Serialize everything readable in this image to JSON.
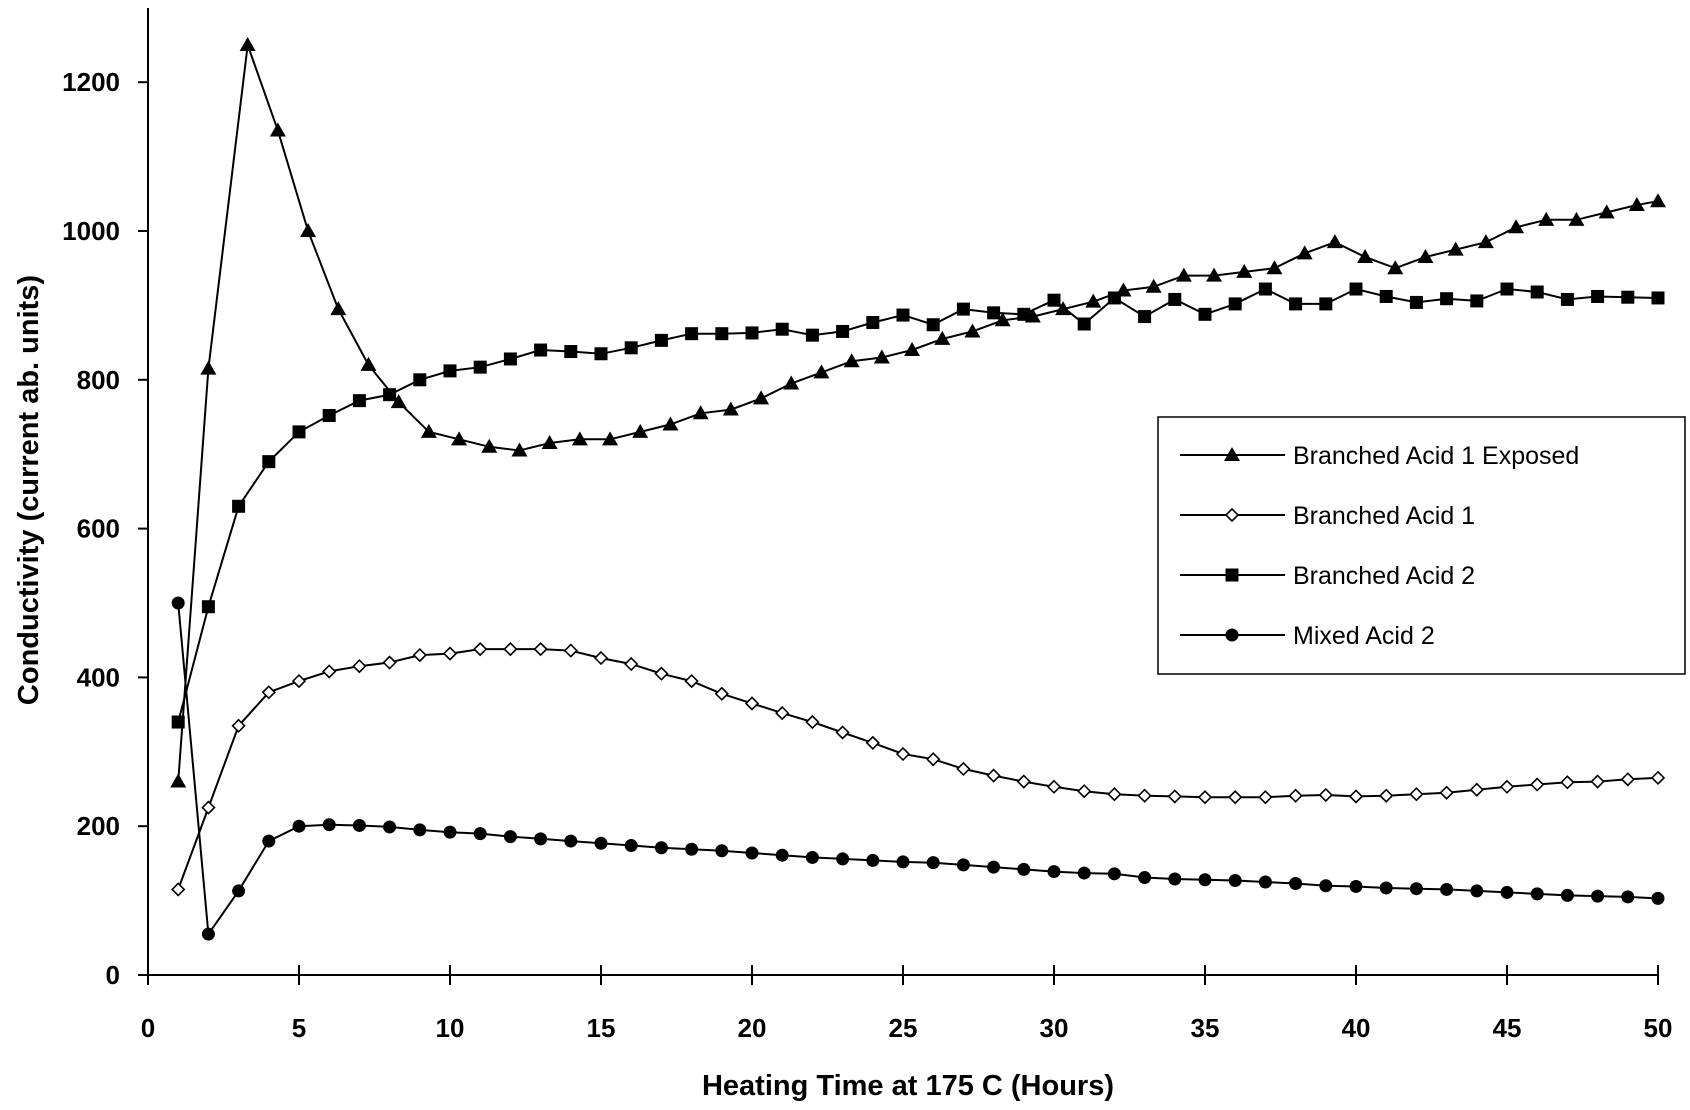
{
  "chart_data": {
    "type": "line",
    "title": "",
    "xlabel": "Heating Time at 175 C (Hours)",
    "ylabel": "Conductivity (current ab. units)",
    "xlim": [
      0,
      50
    ],
    "ylim": [
      0,
      1250
    ],
    "xticks": [
      "0",
      "5",
      "10",
      "15",
      "20",
      "25",
      "30",
      "35",
      "40",
      "45",
      "50"
    ],
    "yticks": [
      "0",
      "200",
      "400",
      "600",
      "800",
      "1000",
      "1200"
    ],
    "grid": false,
    "legend_position": "right",
    "series": [
      {
        "name": "Branched Acid 1 Exposed",
        "marker": "triangle",
        "x": [
          1,
          2,
          3.3,
          4.3,
          5.3,
          6.3,
          7.3,
          8.3,
          9.3,
          10.3,
          11.3,
          12.3,
          13.3,
          14.3,
          15.3,
          16.3,
          17.3,
          18.3,
          19.3,
          20.3,
          21.3,
          22.3,
          23.3,
          24.3,
          25.3,
          26.3,
          27.3,
          28.3,
          29.3,
          30.3,
          31.3,
          32.3,
          33.3,
          34.3,
          35.3,
          36.3,
          37.3,
          38.3,
          39.3,
          40.3,
          41.3,
          42.3,
          43.3,
          44.3,
          45.3,
          46.3,
          47.3,
          48.3,
          49.3,
          50
        ],
        "y": [
          260,
          815,
          1250,
          1135,
          1000,
          895,
          820,
          770,
          730,
          720,
          710,
          705,
          715,
          720,
          720,
          730,
          740,
          755,
          760,
          775,
          795,
          810,
          825,
          830,
          840,
          855,
          865,
          880,
          885,
          895,
          905,
          920,
          925,
          940,
          940,
          945,
          950,
          970,
          985,
          965,
          950,
          965,
          975,
          985,
          1005,
          1015,
          1015,
          1025,
          1035,
          1040
        ]
      },
      {
        "name": "Branched Acid 1",
        "marker": "diamond-open",
        "x": [
          1,
          2,
          3,
          4,
          5,
          6,
          7,
          8,
          9,
          10,
          11,
          12,
          13,
          14,
          15,
          16,
          17,
          18,
          19,
          20,
          21,
          22,
          23,
          24,
          25,
          26,
          27,
          28,
          29,
          30,
          31,
          32,
          33,
          34,
          35,
          36,
          37,
          38,
          39,
          40,
          41,
          42,
          43,
          44,
          45,
          46,
          47,
          48,
          49,
          50
        ],
        "y": [
          115,
          225,
          335,
          380,
          395,
          408,
          415,
          420,
          430,
          432,
          438,
          438,
          438,
          436,
          426,
          418,
          405,
          395,
          378,
          365,
          352,
          340,
          326,
          312,
          297,
          290,
          277,
          268,
          260,
          253,
          247,
          243,
          241,
          240,
          239,
          239,
          239,
          241,
          242,
          240,
          241,
          243,
          245,
          249,
          253,
          256,
          259,
          260,
          263,
          265
        ]
      },
      {
        "name": "Branched Acid 2",
        "marker": "square",
        "x": [
          1,
          2,
          3,
          4,
          5,
          6,
          7,
          8,
          9,
          10,
          11,
          12,
          13,
          14,
          15,
          16,
          17,
          18,
          19,
          20,
          21,
          22,
          23,
          24,
          25,
          26,
          27,
          28,
          29,
          30,
          31,
          32,
          33,
          34,
          35,
          36,
          37,
          38,
          39,
          40,
          41,
          42,
          43,
          44,
          45,
          46,
          47,
          48,
          49,
          50
        ],
        "y": [
          340,
          495,
          630,
          690,
          730,
          752,
          772,
          780,
          800,
          812,
          817,
          828,
          840,
          838,
          835,
          843,
          853,
          862,
          862,
          863,
          868,
          860,
          865,
          877,
          887,
          874,
          895,
          890,
          888,
          907,
          875,
          910,
          885,
          908,
          888,
          902,
          922,
          902,
          902,
          922,
          912,
          904,
          909,
          906,
          922,
          918,
          908,
          912,
          911,
          910
        ]
      },
      {
        "name": "Mixed Acid 2",
        "marker": "circle",
        "x": [
          1,
          2,
          3,
          4,
          5,
          6,
          7,
          8,
          9,
          10,
          11,
          12,
          13,
          14,
          15,
          16,
          17,
          18,
          19,
          20,
          21,
          22,
          23,
          24,
          25,
          26,
          27,
          28,
          29,
          30,
          31,
          32,
          33,
          34,
          35,
          36,
          37,
          38,
          39,
          40,
          41,
          42,
          43,
          44,
          45,
          46,
          47,
          48,
          49,
          50
        ],
        "y": [
          500,
          55,
          113,
          180,
          200,
          202,
          201,
          199,
          195,
          192,
          190,
          186,
          183,
          180,
          177,
          174,
          171,
          169,
          167,
          164,
          161,
          158,
          156,
          154,
          152,
          151,
          148,
          145,
          142,
          139,
          137,
          136,
          131,
          129,
          128,
          127,
          125,
          123,
          120,
          119,
          117,
          116,
          115,
          113,
          111,
          109,
          107,
          106,
          105,
          103
        ]
      }
    ]
  }
}
